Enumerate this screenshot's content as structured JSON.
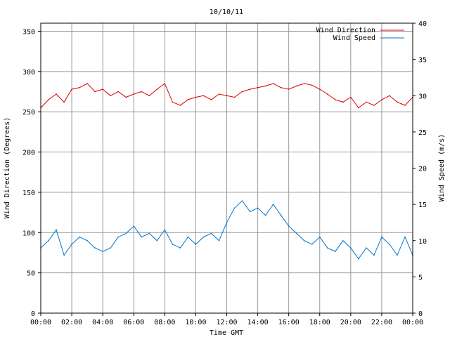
{
  "chart_data": {
    "type": "line",
    "title": "10/10/11",
    "xlabel": "Time GMT",
    "ylabel_left": "Wind Direction (Degrees)",
    "ylabel_right": "Wind Speed (m/s)",
    "xlim": [
      0,
      24
    ],
    "ylim_left": [
      0,
      360
    ],
    "ylim_right": [
      0,
      40
    ],
    "x_tick_labels": [
      "00:00",
      "02:00",
      "04:00",
      "06:00",
      "08:00",
      "10:00",
      "12:00",
      "14:00",
      "16:00",
      "18:00",
      "20:00",
      "22:00",
      "00:00"
    ],
    "y_left_tick_labels": [
      "0",
      "50",
      "100",
      "150",
      "200",
      "250",
      "300",
      "350"
    ],
    "y_right_tick_labels": [
      "0",
      "5",
      "10",
      "15",
      "20",
      "25",
      "30",
      "35",
      "40"
    ],
    "grid": true,
    "legend_position": "top-right",
    "series": [
      {
        "name": "Wind Direction",
        "color": "#dd0000",
        "axis": "left",
        "x": [
          0,
          0.5,
          1,
          1.5,
          2,
          2.5,
          3,
          3.5,
          4,
          4.5,
          5,
          5.5,
          6,
          6.5,
          7,
          7.5,
          8,
          8.5,
          9,
          9.5,
          10,
          10.5,
          11,
          11.5,
          12,
          12.5,
          13,
          13.5,
          14,
          14.5,
          15,
          15.5,
          16,
          16.5,
          17,
          17.5,
          18,
          18.5,
          19,
          19.5,
          20,
          20.5,
          21,
          21.5,
          22,
          22.5,
          23,
          23.5,
          24
        ],
        "values": [
          255,
          265,
          272,
          262,
          278,
          280,
          285,
          275,
          278,
          270,
          275,
          268,
          272,
          275,
          270,
          278,
          285,
          262,
          258,
          265,
          268,
          270,
          265,
          272,
          270,
          268,
          275,
          278,
          280,
          282,
          285,
          280,
          278,
          282,
          285,
          283,
          278,
          272,
          265,
          262,
          268,
          255,
          262,
          258,
          265,
          270,
          262,
          258,
          268
        ]
      },
      {
        "name": "Wind Speed",
        "color": "#0077cc",
        "axis": "right",
        "x": [
          0,
          0.5,
          1,
          1.5,
          2,
          2.5,
          3,
          3.5,
          4,
          4.5,
          5,
          5.5,
          6,
          6.5,
          7,
          7.5,
          8,
          8.5,
          9,
          9.5,
          10,
          10.5,
          11,
          11.5,
          12,
          12.5,
          13,
          13.5,
          14,
          14.5,
          15,
          15.5,
          16,
          16.5,
          17,
          17.5,
          18,
          18.5,
          19,
          19.5,
          20,
          20.5,
          21,
          21.5,
          22,
          22.5,
          23,
          23.5,
          24
        ],
        "values": [
          9.0,
          10.0,
          11.5,
          8.0,
          9.5,
          10.5,
          10.0,
          9.0,
          8.5,
          9.0,
          10.5,
          11.0,
          12.0,
          10.5,
          11.0,
          10.0,
          11.5,
          9.5,
          9.0,
          10.5,
          9.5,
          10.5,
          11.0,
          10.0,
          12.5,
          14.5,
          15.5,
          14.0,
          14.5,
          13.5,
          15.0,
          13.5,
          12.0,
          11.0,
          10.0,
          9.5,
          10.5,
          9.0,
          8.5,
          10.0,
          9.0,
          7.5,
          9.0,
          8.0,
          10.5,
          9.5,
          8.0,
          10.5,
          8.0
        ]
      }
    ]
  }
}
